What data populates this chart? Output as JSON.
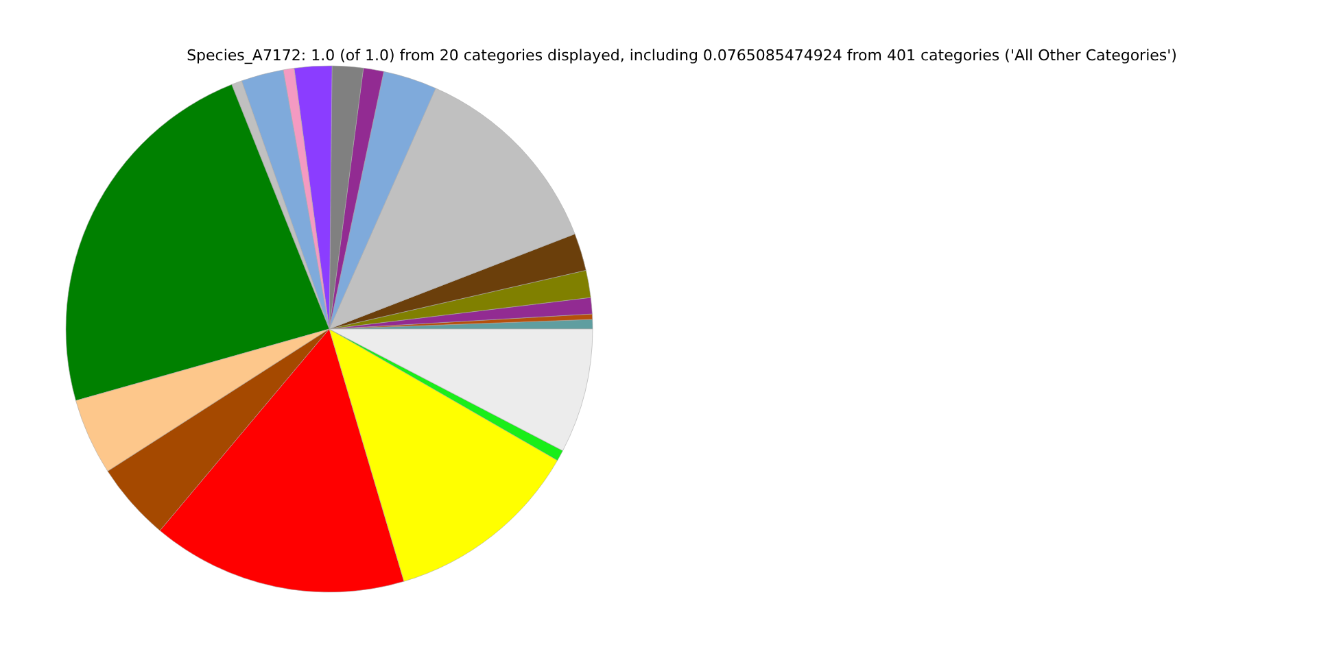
{
  "chart_data": {
    "type": "pie",
    "title": "Species_A7172: 1.0 (of 1.0) from 20 categories displayed, including 0.0765085474924 from 401 categories ('All Other Categories')",
    "categories": [
      null,
      null,
      null,
      null,
      null,
      null,
      null,
      null,
      null,
      null,
      null,
      null,
      null,
      null,
      null,
      null,
      null,
      null,
      null,
      null
    ],
    "values": [
      0.58,
      0.33,
      1.0,
      1.67,
      2.3,
      12.5,
      3.3,
      1.25,
      1.9,
      2.3,
      0.67,
      2.6,
      0.64,
      23.35,
      4.7,
      4.8,
      15.69,
      12.1,
      0.67,
      7.65
    ],
    "colors": [
      "#5f9ea0",
      "#b5500b",
      "#922b92",
      "#808000",
      "#6b3f0b",
      "#c0c0c0",
      "#7faadb",
      "#922b92",
      "#808080",
      "#8b3dff",
      "#f49ac2",
      "#7faadb",
      "#c0c0c0",
      "#008000",
      "#fdc78b",
      "#a54900",
      "#ff0000",
      "#ffff00",
      "#19ee19",
      "#ececec"
    ]
  }
}
